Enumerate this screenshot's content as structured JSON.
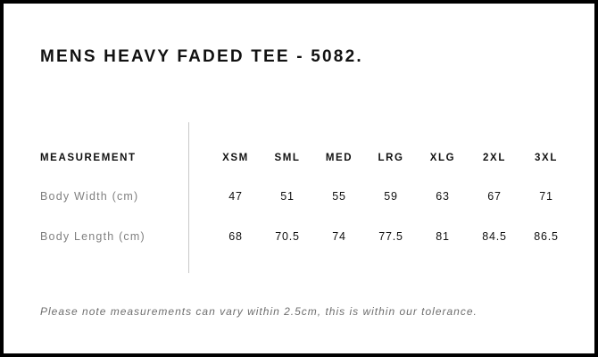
{
  "title": "MENS HEAVY FADED TEE - 5082.",
  "table": {
    "header": "MEASUREMENT",
    "sizes": [
      "XSM",
      "SML",
      "MED",
      "LRG",
      "XLG",
      "2XL",
      "3XL"
    ],
    "rows": [
      {
        "label": "Body Width (cm)",
        "values": [
          "47",
          "51",
          "55",
          "59",
          "63",
          "67",
          "71"
        ]
      },
      {
        "label": "Body Length (cm)",
        "values": [
          "68",
          "70.5",
          "74",
          "77.5",
          "81",
          "84.5",
          "86.5"
        ]
      }
    ]
  },
  "note": "Please note measurements can vary within 2.5cm, this is within our tolerance."
}
